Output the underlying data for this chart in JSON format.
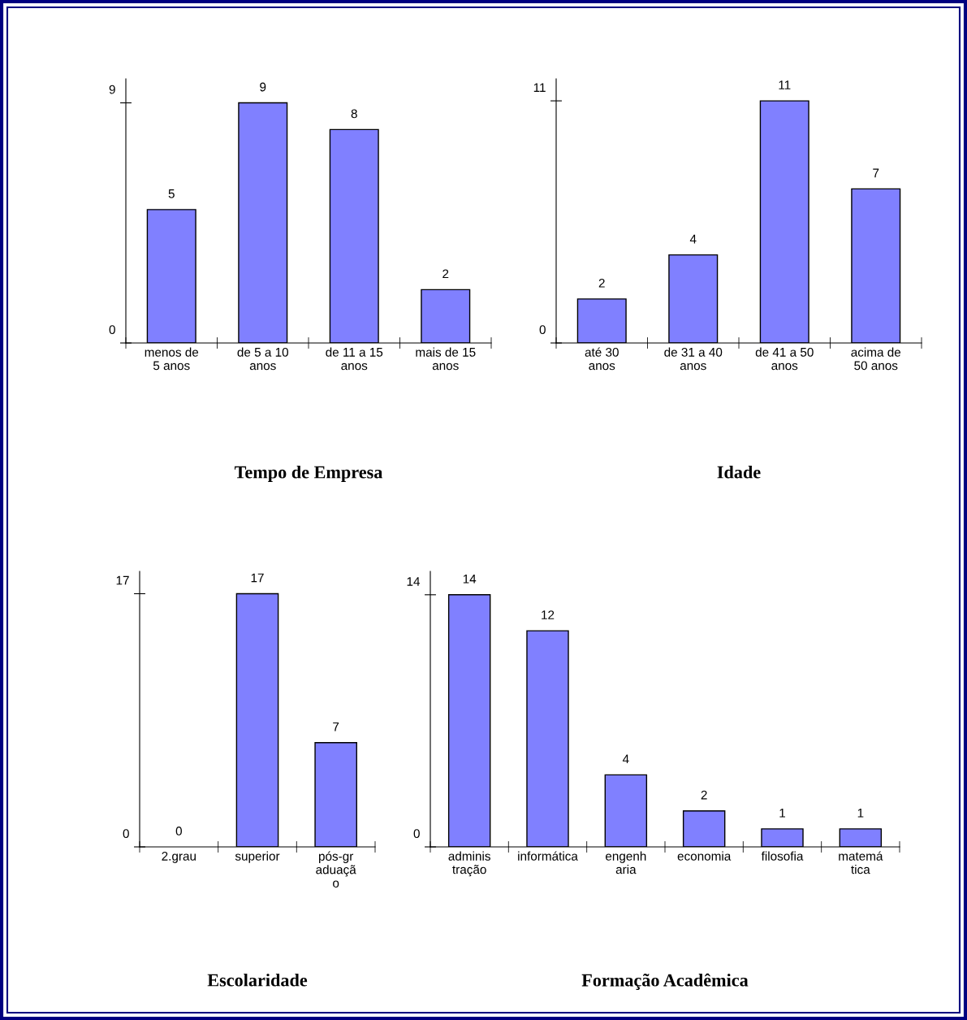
{
  "chart_data": [
    {
      "type": "bar",
      "title": "Tempo de Empresa",
      "categories": [
        "menos de\n5 anos",
        "de 5 a 10\nanos",
        "de 11 a 15\nanos",
        "mais de 15\nanos"
      ],
      "values": [
        5,
        9,
        8,
        2
      ],
      "color": "#8080ff",
      "ylim": [
        0,
        9.9
      ],
      "yticks": [
        0,
        9
      ],
      "data_labels": true,
      "grid": false,
      "legend": false
    },
    {
      "type": "bar",
      "title": "Idade",
      "categories": [
        "até 30\nanos",
        "de 31 a 40\nanos",
        "de 41 a 50\nanos",
        "acima de\n50 anos"
      ],
      "values": [
        2,
        4,
        11,
        7
      ],
      "color": "#8080ff",
      "ylim": [
        0,
        12
      ],
      "yticks": [
        0,
        11
      ],
      "data_labels": true,
      "grid": false,
      "legend": false
    },
    {
      "type": "bar",
      "title": "Escolaridade",
      "categories": [
        "2.grau",
        "superior",
        "pós-gr\naduaçã\no"
      ],
      "values": [
        0,
        17,
        7
      ],
      "color": "#8080ff",
      "ylim": [
        0,
        18.5
      ],
      "yticks": [
        0,
        17
      ],
      "data_labels": true,
      "grid": false,
      "legend": false
    },
    {
      "type": "bar",
      "title": "Formação Acadêmica",
      "categories": [
        "adminis\ntração",
        "informática",
        "engenh\naria",
        "economia",
        "filosofia",
        "matemá\ntica"
      ],
      "values": [
        14,
        12,
        4,
        2,
        1,
        1
      ],
      "color": "#8080ff",
      "ylim": [
        0,
        15.3
      ],
      "yticks": [
        0,
        14
      ],
      "data_labels": true,
      "grid": false,
      "legend": false
    }
  ]
}
